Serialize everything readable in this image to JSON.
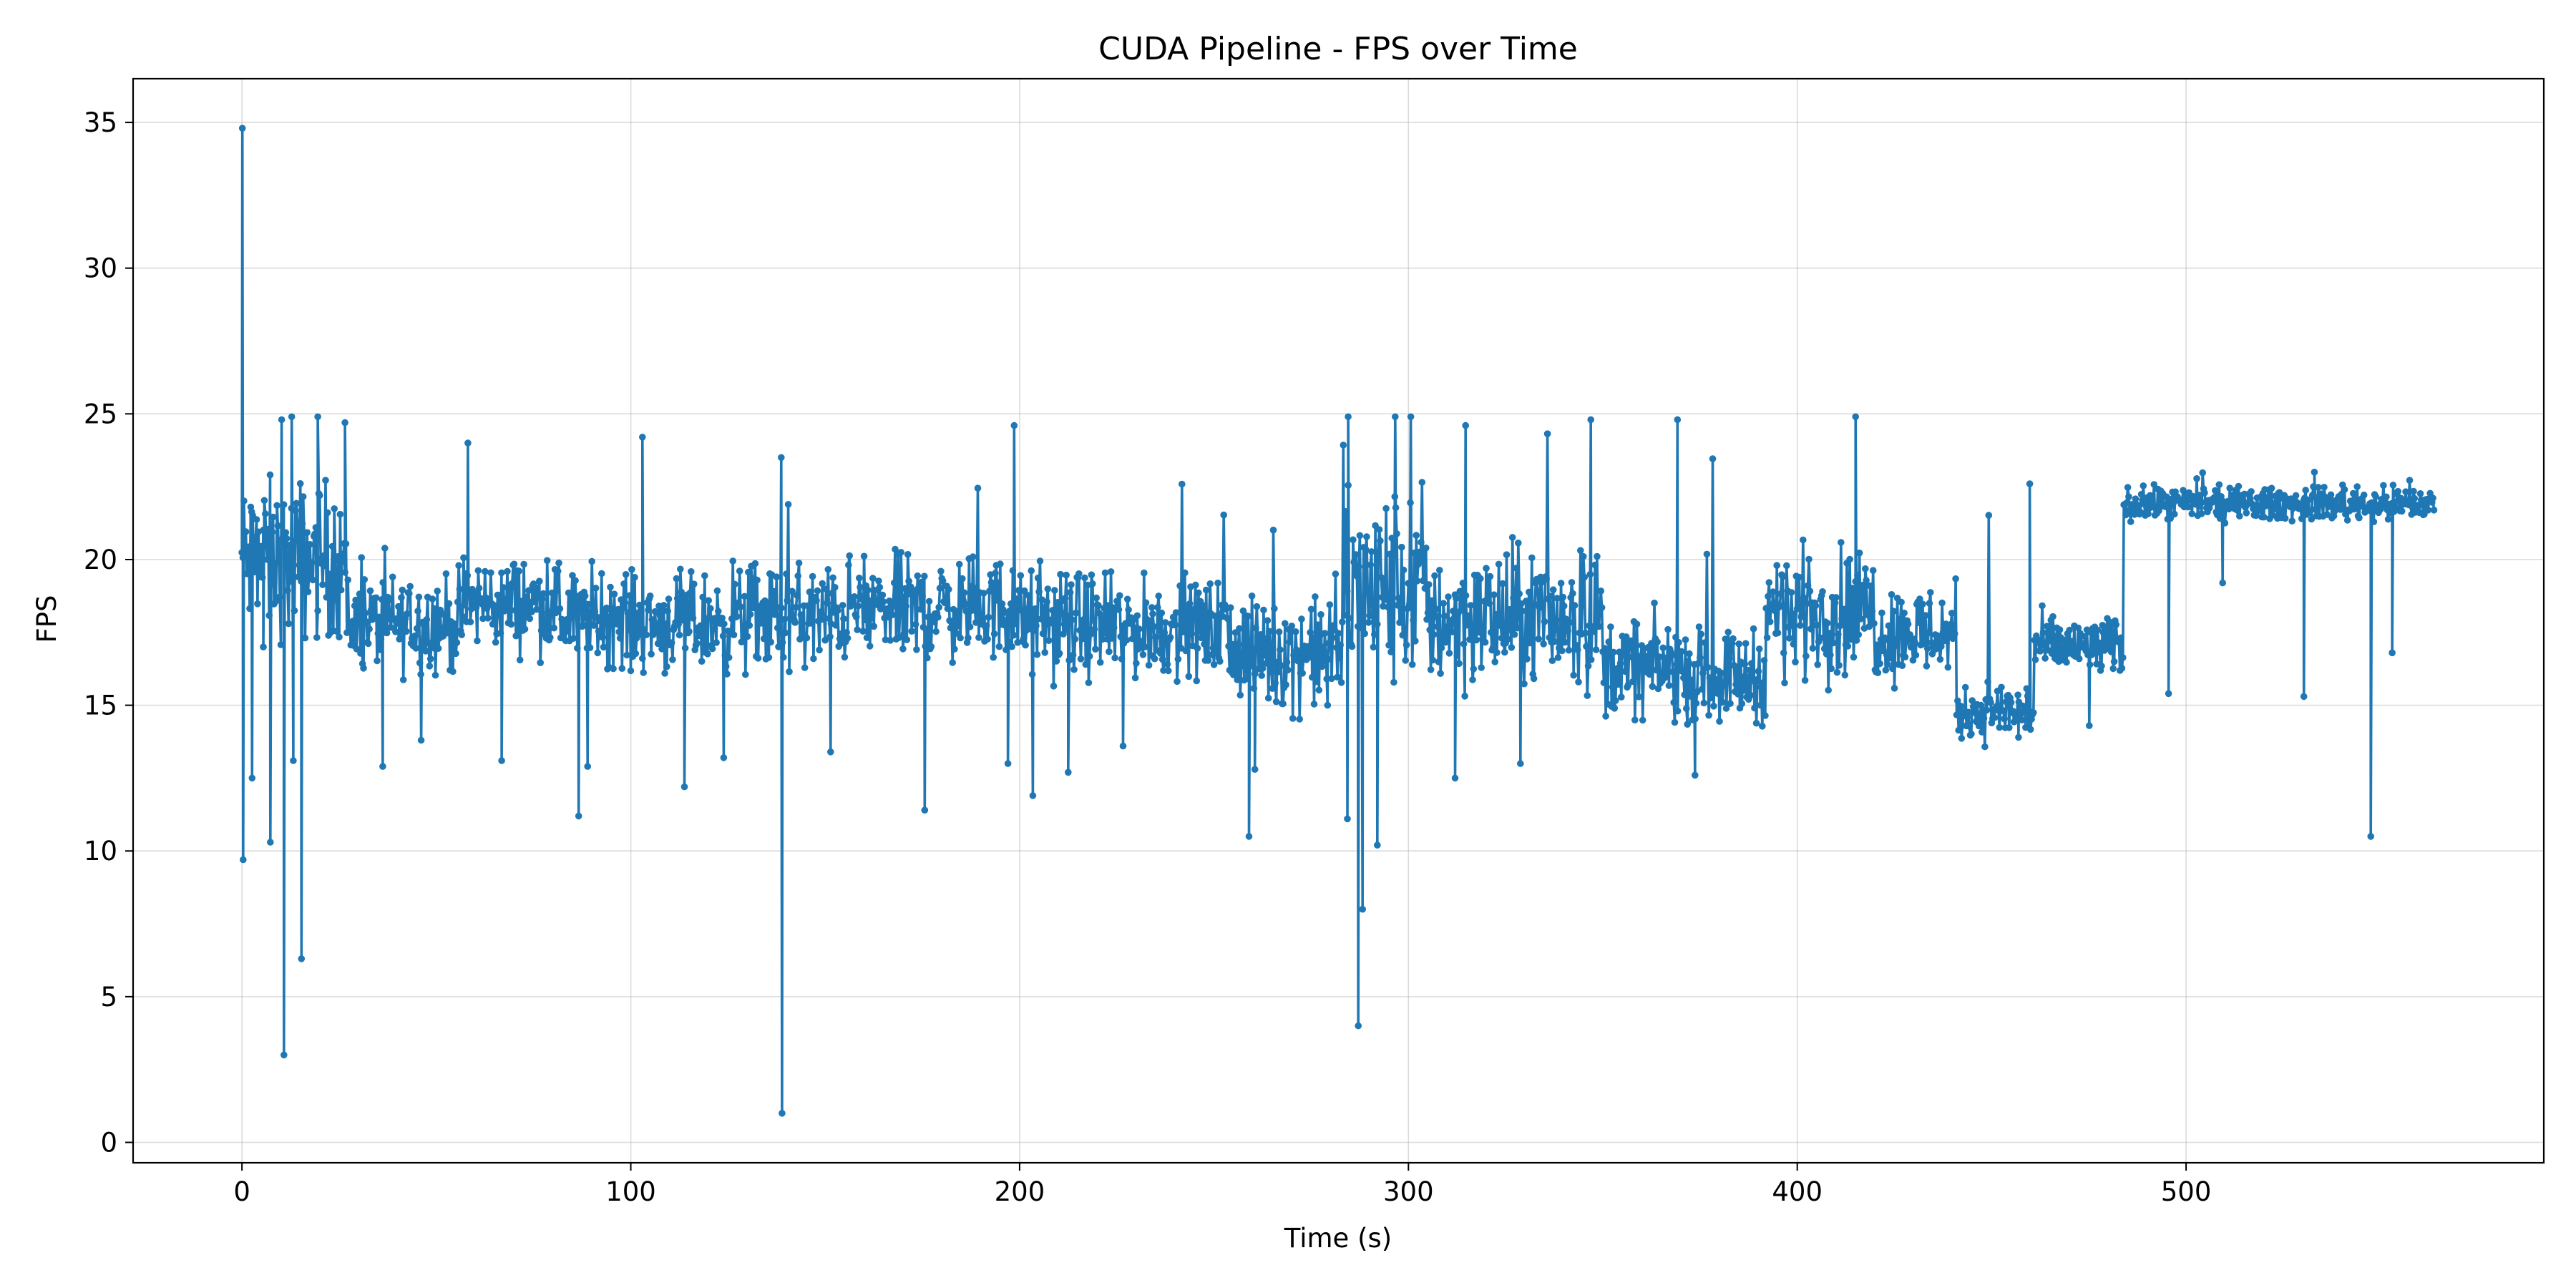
{
  "chart_data": {
    "type": "line",
    "title": "CUDA Pipeline - FPS over Time",
    "xlabel": "Time (s)",
    "ylabel": "FPS",
    "xlim": [
      -28,
      592
    ],
    "ylim": [
      -0.7,
      36.5
    ],
    "xticks": [
      0,
      100,
      200,
      300,
      400,
      500
    ],
    "yticks": [
      0,
      5,
      10,
      15,
      20,
      25,
      30,
      35
    ],
    "grid": true,
    "markers": true,
    "color": "#1f77b4",
    "segments": [
      {
        "start": 0,
        "end": 27,
        "base": 20.0,
        "noise": 2.6,
        "spikeHi": 24.8
      },
      {
        "start": 27,
        "end": 57,
        "base": 17.8,
        "noise": 1.6,
        "spikeHi": 20.5
      },
      {
        "start": 57,
        "end": 82,
        "base": 18.5,
        "noise": 1.5,
        "spikeHi": 21.0
      },
      {
        "start": 82,
        "end": 100,
        "base": 18.0,
        "noise": 1.6,
        "spikeHi": 20.0
      },
      {
        "start": 100,
        "end": 125,
        "base": 17.8,
        "noise": 1.6,
        "spikeHi": 24.2
      },
      {
        "start": 125,
        "end": 155,
        "base": 18.0,
        "noise": 1.8,
        "spikeHi": 23.5
      },
      {
        "start": 155,
        "end": 200,
        "base": 18.3,
        "noise": 1.7,
        "spikeHi": 24.6
      },
      {
        "start": 200,
        "end": 220,
        "base": 17.8,
        "noise": 1.7,
        "spikeHi": 21.0
      },
      {
        "start": 220,
        "end": 255,
        "base": 17.6,
        "noise": 1.6,
        "spikeHi": 23.3
      },
      {
        "start": 255,
        "end": 283,
        "base": 16.8,
        "noise": 1.8,
        "spikeHi": 22.7
      },
      {
        "start": 283,
        "end": 305,
        "base": 19.0,
        "noise": 3.3,
        "spikeHi": 24.9
      },
      {
        "start": 305,
        "end": 350,
        "base": 18.0,
        "noise": 2.3,
        "spikeHi": 24.8
      },
      {
        "start": 350,
        "end": 370,
        "base": 16.3,
        "noise": 1.6,
        "spikeHi": 18.0
      },
      {
        "start": 370,
        "end": 392,
        "base": 16.0,
        "noise": 1.5,
        "spikeHi": 24.0
      },
      {
        "start": 392,
        "end": 420,
        "base": 18.2,
        "noise": 2.1,
        "spikeHi": 24.9
      },
      {
        "start": 420,
        "end": 441,
        "base": 17.5,
        "noise": 1.6,
        "spikeHi": 20.0
      },
      {
        "start": 441,
        "end": 461,
        "base": 14.8,
        "noise": 1.0,
        "spikeHi": 22.6
      },
      {
        "start": 461,
        "end": 484,
        "base": 17.0,
        "noise": 1.0,
        "spikeHi": 21.0
      },
      {
        "start": 484,
        "end": 564,
        "base": 21.9,
        "noise": 0.55,
        "spikeHi": 23.1
      }
    ],
    "dips": [
      [
        0.1,
        34.8
      ],
      [
        0.3,
        9.7
      ],
      [
        2.6,
        12.5
      ],
      [
        5.5,
        17.0
      ],
      [
        7.3,
        10.3
      ],
      [
        10.8,
        3.0
      ],
      [
        13.2,
        13.1
      ],
      [
        15.3,
        6.3
      ],
      [
        36.2,
        12.9
      ],
      [
        46.1,
        13.8
      ],
      [
        66.8,
        13.1
      ],
      [
        86.6,
        11.2
      ],
      [
        88.9,
        12.9
      ],
      [
        113.8,
        12.2
      ],
      [
        123.9,
        13.2
      ],
      [
        138.7,
        23.5
      ],
      [
        138.9,
        1.0
      ],
      [
        151.4,
        13.4
      ],
      [
        175.6,
        11.4
      ],
      [
        197.0,
        13.0
      ],
      [
        203.4,
        11.9
      ],
      [
        212.5,
        12.7
      ],
      [
        226.6,
        13.6
      ],
      [
        259.0,
        10.5
      ],
      [
        260.5,
        12.8
      ],
      [
        279.2,
        15.0
      ],
      [
        284.3,
        11.1
      ],
      [
        287.1,
        4.0
      ],
      [
        288.2,
        8.0
      ],
      [
        292.0,
        10.2
      ],
      [
        312.0,
        12.5
      ],
      [
        328.8,
        13.0
      ],
      [
        373.7,
        12.6
      ],
      [
        456.9,
        13.9
      ],
      [
        475.1,
        14.3
      ],
      [
        495.5,
        15.4
      ],
      [
        509.4,
        19.2
      ],
      [
        530.3,
        15.3
      ],
      [
        547.5,
        10.5
      ],
      [
        553.0,
        16.8
      ]
    ],
    "spikes": [
      [
        10.2,
        24.8
      ],
      [
        12.8,
        24.9
      ],
      [
        19.5,
        24.9
      ],
      [
        26.5,
        24.7
      ],
      [
        58.1,
        24.0
      ],
      [
        103.0,
        24.2
      ],
      [
        198.6,
        24.6
      ],
      [
        284.5,
        24.9
      ],
      [
        296.6,
        24.9
      ],
      [
        300.6,
        24.9
      ],
      [
        314.7,
        24.6
      ],
      [
        346.9,
        24.8
      ],
      [
        369.2,
        24.8
      ],
      [
        415.0,
        24.9
      ],
      [
        459.8,
        22.6
      ],
      [
        533.0,
        23.0
      ]
    ]
  }
}
